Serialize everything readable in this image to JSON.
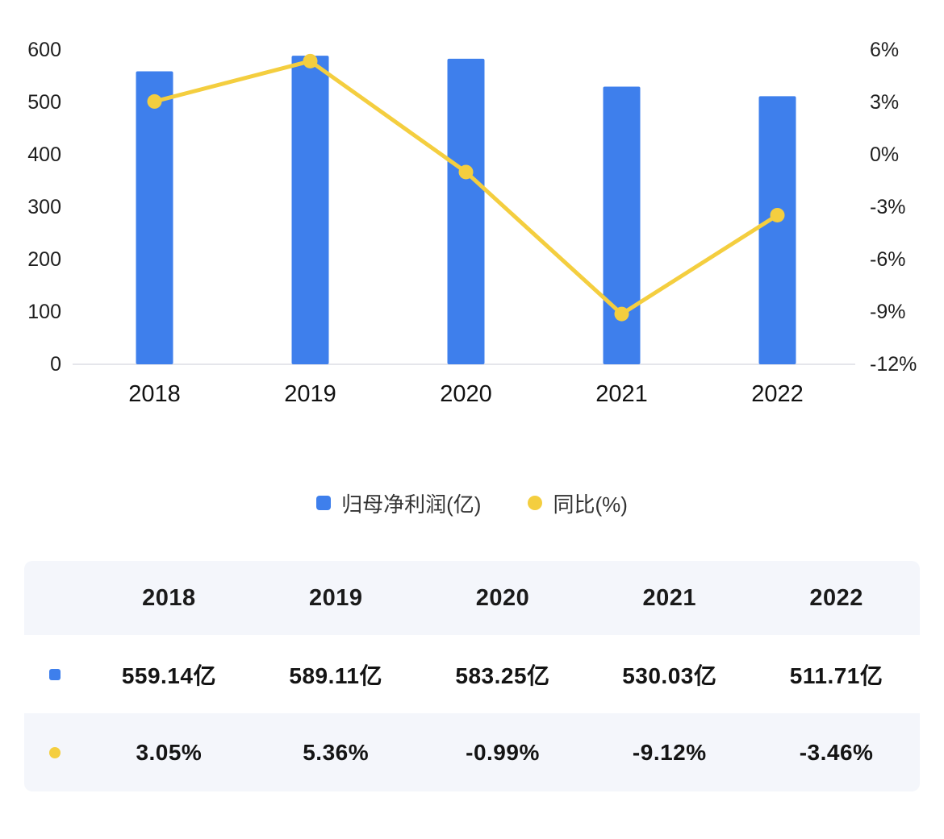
{
  "chart_data": {
    "type": "bar",
    "subtype": "bar+line dual-axis",
    "categories": [
      "2018",
      "2019",
      "2020",
      "2021",
      "2022"
    ],
    "series": [
      {
        "name": "归母净利润(亿)",
        "type": "bar",
        "axis": "left",
        "color": "#3e7fec",
        "values": [
          559.14,
          589.11,
          583.25,
          530.03,
          511.71
        ]
      },
      {
        "name": "同比(%)",
        "type": "line",
        "axis": "right",
        "color": "#f4ce3f",
        "values": [
          3.05,
          5.36,
          -0.99,
          -9.12,
          -3.46
        ]
      }
    ],
    "left_axis": {
      "min": 0,
      "max": 600,
      "ticks": [
        "600",
        "500",
        "400",
        "300",
        "200",
        "100",
        "0"
      ]
    },
    "right_axis": {
      "min": -12,
      "max": 6,
      "ticks": [
        "6%",
        "3%",
        "0%",
        "-3%",
        "-6%",
        "-9%",
        "-12%"
      ]
    },
    "grid": false,
    "legend_position": "bottom"
  },
  "legend": {
    "items": [
      {
        "label": "归母净利润(亿)",
        "color": "#3e7fec",
        "shape": "square"
      },
      {
        "label": "同比(%)",
        "color": "#f4ce3f",
        "shape": "circle"
      }
    ]
  },
  "table": {
    "headers": [
      "2018",
      "2019",
      "2020",
      "2021",
      "2022"
    ],
    "rows": [
      {
        "marker_shape": "square",
        "marker_color": "#3e7fec",
        "values": [
          "559.14亿",
          "589.11亿",
          "583.25亿",
          "530.03亿",
          "511.71亿"
        ]
      },
      {
        "marker_shape": "circle",
        "marker_color": "#f4ce3f",
        "values": [
          "3.05%",
          "5.36%",
          "-0.99%",
          "-9.12%",
          "-3.46%"
        ]
      }
    ]
  },
  "colors": {
    "bar": "#3e7fec",
    "line": "#f4ce3f",
    "axis_line": "#e5e6eb",
    "table_row_bg": "#f4f6fb"
  }
}
